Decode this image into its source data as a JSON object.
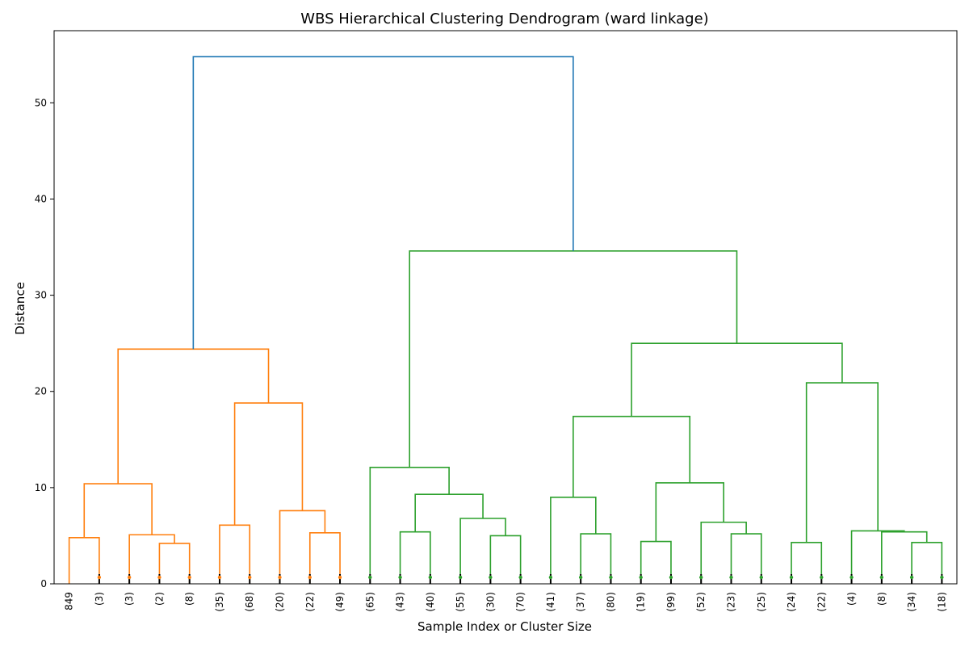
{
  "chart_data": {
    "type": "dendrogram",
    "title": "WBS Hierarchical Clustering Dendrogram (ward linkage)",
    "xlabel": "Sample Index or Cluster Size",
    "ylabel": "Distance",
    "ylim": [
      0,
      57.5
    ],
    "yticks": [
      0,
      10,
      20,
      30,
      40,
      50
    ],
    "leaf_labels": [
      "849",
      "(3)",
      "(3)",
      "(2)",
      "(8)",
      "(35)",
      "(68)",
      "(20)",
      "(22)",
      "(49)",
      "(65)",
      "(43)",
      "(40)",
      "(55)",
      "(30)",
      "(70)",
      "(41)",
      "(37)",
      "(80)",
      "(19)",
      "(99)",
      "(52)",
      "(23)",
      "(25)",
      "(24)",
      "(22)",
      "(4)",
      "(8)",
      "(34)",
      "(18)"
    ],
    "colors": {
      "root": "#1f77b4",
      "cluster_1": "#ff7f0e",
      "cluster_2": "#2ca02c"
    },
    "merges": [
      {
        "left": 0,
        "right": 1,
        "height": 4.8,
        "color": "cluster_1"
      },
      {
        "left": 3,
        "right": 4,
        "height": 4.2,
        "color": "cluster_1"
      },
      {
        "left": 2,
        "right": 31,
        "height": 5.1,
        "color": "cluster_1"
      },
      {
        "left": 30,
        "right": 32,
        "height": 10.4,
        "color": "cluster_1"
      },
      {
        "left": 5,
        "right": 6,
        "height": 6.1,
        "color": "cluster_1"
      },
      {
        "left": 8,
        "right": 9,
        "height": 5.3,
        "color": "cluster_1"
      },
      {
        "left": 7,
        "right": 35,
        "height": 7.6,
        "color": "cluster_1"
      },
      {
        "left": 34,
        "right": 36,
        "height": 18.8,
        "color": "cluster_1"
      },
      {
        "left": 33,
        "right": 37,
        "height": 24.4,
        "color": "cluster_1"
      },
      {
        "left": 11,
        "right": 12,
        "height": 5.4,
        "color": "cluster_2"
      },
      {
        "left": 14,
        "right": 15,
        "height": 5.0,
        "color": "cluster_2"
      },
      {
        "left": 13,
        "right": 40,
        "height": 6.8,
        "color": "cluster_2"
      },
      {
        "left": 39,
        "right": 41,
        "height": 9.3,
        "color": "cluster_2"
      },
      {
        "left": 10,
        "right": 42,
        "height": 12.1,
        "color": "cluster_2"
      },
      {
        "left": 17,
        "right": 18,
        "height": 5.2,
        "color": "cluster_2"
      },
      {
        "left": 16,
        "right": 44,
        "height": 9.0,
        "color": "cluster_2"
      },
      {
        "left": 19,
        "right": 20,
        "height": 4.4,
        "color": "cluster_2"
      },
      {
        "left": 22,
        "right": 23,
        "height": 5.2,
        "color": "cluster_2"
      },
      {
        "left": 21,
        "right": 47,
        "height": 6.4,
        "color": "cluster_2"
      },
      {
        "left": 46,
        "right": 48,
        "height": 10.5,
        "color": "cluster_2"
      },
      {
        "left": 45,
        "right": 49,
        "height": 17.4,
        "color": "cluster_2"
      },
      {
        "left": 24,
        "right": 25,
        "height": 4.3,
        "color": "cluster_2"
      },
      {
        "left": 28,
        "right": 29,
        "height": 4.3,
        "color": "cluster_2"
      },
      {
        "left": 27,
        "right": 52,
        "height": 5.4,
        "color": "cluster_2"
      },
      {
        "left": 26,
        "right": 53,
        "height": 5.5,
        "color": "cluster_2"
      },
      {
        "left": 51,
        "right": 54,
        "height": 20.9,
        "color": "cluster_2"
      },
      {
        "left": 50,
        "right": 55,
        "height": 25.0,
        "color": "cluster_2"
      },
      {
        "left": 43,
        "right": 56,
        "height": 34.6,
        "color": "cluster_2"
      },
      {
        "left": 38,
        "right": 57,
        "height": 54.8,
        "color": "root"
      }
    ]
  }
}
